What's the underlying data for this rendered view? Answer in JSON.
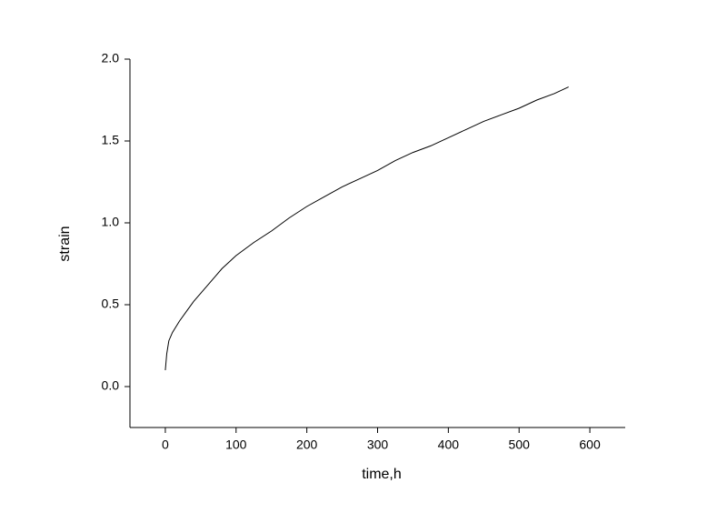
{
  "chart_data": {
    "type": "line",
    "x_label": "time,h",
    "y_label": "strain",
    "x": [
      0,
      2,
      5,
      10,
      20,
      30,
      40,
      50,
      60,
      70,
      80,
      100,
      125,
      150,
      175,
      200,
      225,
      250,
      275,
      300,
      325,
      350,
      375,
      400,
      425,
      450,
      475,
      500,
      525,
      550,
      570
    ],
    "series": [
      {
        "color": "#000000",
        "values": [
          0.1,
          0.2,
          0.28,
          0.33,
          0.4,
          0.46,
          0.52,
          0.57,
          0.62,
          0.67,
          0.72,
          0.8,
          0.88,
          0.95,
          1.03,
          1.1,
          1.16,
          1.22,
          1.27,
          1.32,
          1.38,
          1.43,
          1.47,
          1.52,
          1.57,
          1.62,
          1.66,
          1.7,
          1.75,
          1.79,
          1.83
        ]
      }
    ],
    "xlim": [
      -50,
      650
    ],
    "ylim": [
      -0.25,
      2.0
    ],
    "xticks": [
      0,
      100,
      200,
      300,
      400,
      500,
      600
    ],
    "yticks": [
      {
        "value": 0,
        "label": "0.0"
      },
      {
        "value": 0.5,
        "label": "0.5"
      },
      {
        "value": 1,
        "label": "1.0"
      },
      {
        "value": 1.5,
        "label": "1.5"
      },
      {
        "value": 2,
        "label": "2.0"
      }
    ]
  }
}
